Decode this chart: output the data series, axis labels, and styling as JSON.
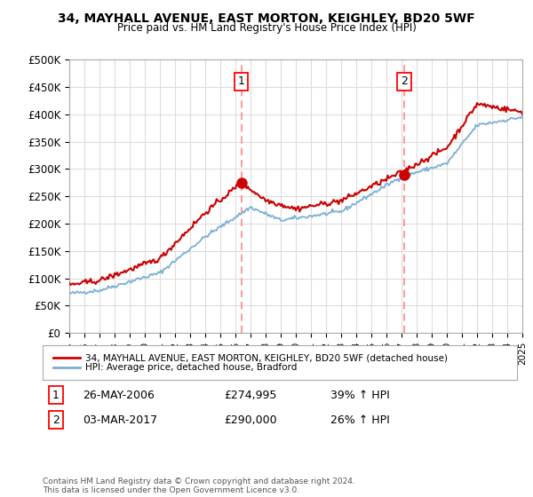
{
  "title": "34, MAYHALL AVENUE, EAST MORTON, KEIGHLEY, BD20 5WF",
  "subtitle": "Price paid vs. HM Land Registry's House Price Index (HPI)",
  "ylabel_ticks": [
    "£0",
    "£50K",
    "£100K",
    "£150K",
    "£200K",
    "£250K",
    "£300K",
    "£350K",
    "£400K",
    "£450K",
    "£500K"
  ],
  "ylim": [
    0,
    500000
  ],
  "xlim_start": 1995,
  "xlim_end": 2025,
  "sale1_x": 2006.4,
  "sale1_y": 274995,
  "sale2_x": 2017.17,
  "sale2_y": 290000,
  "sale1_label": "1",
  "sale2_label": "2",
  "sale1_date": "26-MAY-2006",
  "sale1_price": "£274,995",
  "sale1_hpi": "39% ↑ HPI",
  "sale2_date": "03-MAR-2017",
  "sale2_price": "£290,000",
  "sale2_hpi": "26% ↑ HPI",
  "red_line_color": "#cc0000",
  "blue_line_color": "#7bafd4",
  "marker_color": "#cc0000",
  "vline_color": "#ff8888",
  "legend1": "34, MAYHALL AVENUE, EAST MORTON, KEIGHLEY, BD20 5WF (detached house)",
  "legend2": "HPI: Average price, detached house, Bradford",
  "footnote": "Contains HM Land Registry data © Crown copyright and database right 2024.\nThis data is licensed under the Open Government Licence v3.0.",
  "background_color": "#ffffff",
  "grid_color": "#dddddd"
}
